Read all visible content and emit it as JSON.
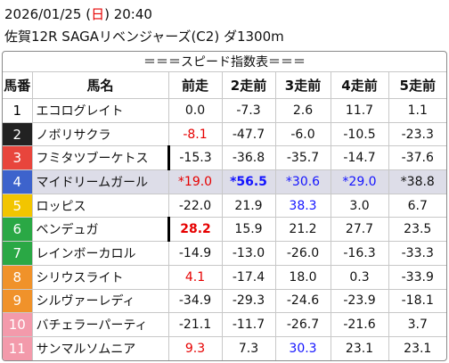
{
  "header": {
    "date_prefix": "2026/01/25 (",
    "weekday": "日",
    "date_suffix": ") 20:40",
    "race": "佐賀12R SAGAリベンジャーズ(C2) ダ1300m"
  },
  "table": {
    "caption": "＝＝＝スピード指数表＝＝＝",
    "columns": [
      "馬番",
      "馬名",
      "前走",
      "2走前",
      "3走前",
      "4走前",
      "5走前"
    ],
    "rows": [
      {
        "num": "1",
        "color": "#ffffff",
        "text_color": "#000000",
        "name": "エコログレイト",
        "cells": [
          "0.0",
          "-7.3",
          "2.6",
          "11.7",
          "1.1"
        ]
      },
      {
        "num": "2",
        "color": "#222222",
        "name": "ノボリサクラ",
        "cells": [
          "-8.1",
          "-47.7",
          "-6.0",
          "-10.5",
          "-23.3"
        ],
        "styles": {
          "0": "red"
        }
      },
      {
        "num": "3",
        "color": "#e8453c",
        "name": "フミタツブーケトス",
        "cells": [
          "-15.3",
          "-36.8",
          "-35.7",
          "-14.7",
          "-37.6"
        ],
        "marked": true
      },
      {
        "num": "4",
        "color": "#3d63cc",
        "name": "マイドリームガール",
        "cells": [
          "*19.0",
          "*56.5",
          "*30.6",
          "*29.0",
          "*38.8"
        ],
        "styles": {
          "0": "red",
          "1": "blue bold",
          "2": "blue",
          "3": "blue"
        },
        "highlight": true
      },
      {
        "num": "5",
        "color": "#f2c500",
        "name": "ロッピス",
        "cells": [
          "-22.0",
          "21.9",
          "38.3",
          "3.0",
          "6.7"
        ],
        "styles": {
          "2": "blue"
        }
      },
      {
        "num": "6",
        "color": "#2aa845",
        "name": "ベンデュガ",
        "cells": [
          "28.2",
          "15.9",
          "21.2",
          "27.7",
          "23.5"
        ],
        "styles": {
          "0": "red bold"
        },
        "marked": true
      },
      {
        "num": "7",
        "color": "#2aa845",
        "name": "レインボーカロル",
        "cells": [
          "-14.9",
          "-13.0",
          "-26.0",
          "-16.3",
          "-33.3"
        ]
      },
      {
        "num": "8",
        "color": "#f0922a",
        "name": "シリウスライト",
        "cells": [
          "4.1",
          "-17.4",
          "18.0",
          "0.3",
          "-33.9"
        ],
        "styles": {
          "0": "red"
        }
      },
      {
        "num": "9",
        "color": "#f0922a",
        "name": "シルヴァーレディ",
        "cells": [
          "-34.9",
          "-29.3",
          "-24.6",
          "-23.9",
          "-18.1"
        ]
      },
      {
        "num": "10",
        "color": "#f39aab",
        "name": "バチェラーパーティ",
        "cells": [
          "-21.1",
          "-11.7",
          "-26.7",
          "-21.6",
          "3.7"
        ]
      },
      {
        "num": "11",
        "color": "#f39aab",
        "name": "サンマルソムニア",
        "cells": [
          "9.3",
          "7.3",
          "30.3",
          "23.1",
          "23.1"
        ],
        "styles": {
          "0": "red",
          "2": "blue"
        }
      }
    ]
  }
}
